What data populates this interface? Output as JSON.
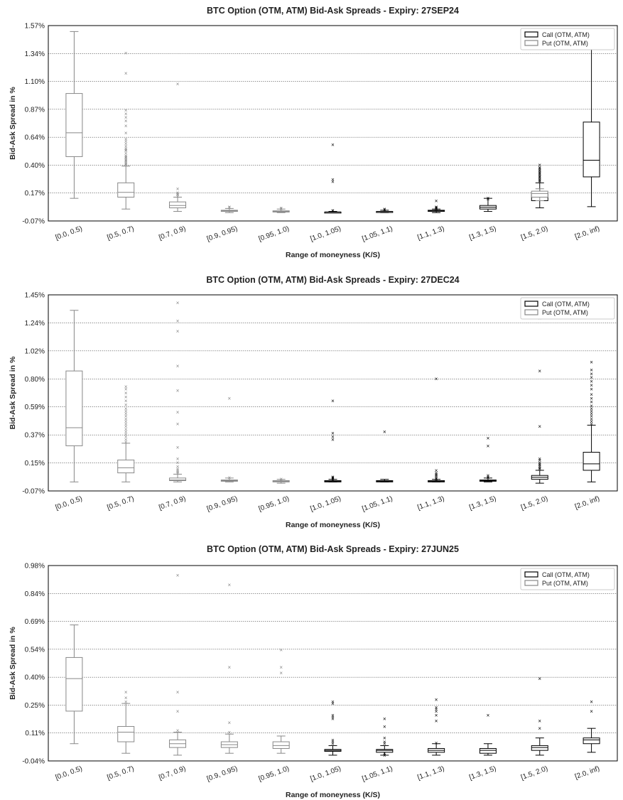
{
  "chart_data": [
    {
      "type": "box",
      "title": "BTC Option (OTM, ATM) Bid-Ask Spreads - Expiry: 27SEP24",
      "xlabel": "Range of moneyness (K/S)",
      "ylabel": "Bid-Ask Spread in %",
      "ylim": [
        -0.07,
        1.57
      ],
      "yticks": [
        "-0.07%",
        "0.17%",
        "0.40%",
        "0.64%",
        "0.87%",
        "1.10%",
        "1.34%",
        "1.57%"
      ],
      "grid": "horizontal-dotted",
      "legend_position": "top-right",
      "categories": [
        "[0.0, 0.5)",
        "[0.5, 0.7)",
        "[0.7, 0.9)",
        "[0.9, 0.95)",
        "[0.95, 1.0)",
        "[1.0, 1.05)",
        "[1.05, 1.1)",
        "[1.1, 1.3)",
        "[1.3, 1.5)",
        "[1.5, 2.0)",
        "[2.0, inf)"
      ],
      "series": [
        {
          "name": "Call (OTM, ATM)",
          "color": "#000000",
          "boxes": [
            null,
            null,
            null,
            null,
            null,
            {
              "whislo": 0.0,
              "q1": 0.0,
              "med": 0.005,
              "q3": 0.005,
              "whishi": 0.01,
              "outliers": [
                0.015,
                0.02,
                0.26,
                0.28,
                0.57
              ]
            },
            {
              "whislo": 0.0,
              "q1": 0.005,
              "med": 0.01,
              "q3": 0.01,
              "whishi": 0.02,
              "outliers": [
                0.025,
                0.03
              ]
            },
            {
              "whislo": 0.0,
              "q1": 0.01,
              "med": 0.015,
              "q3": 0.02,
              "whishi": 0.03,
              "outliers": [
                0.035,
                0.04,
                0.045,
                0.05,
                0.1
              ]
            },
            {
              "whislo": 0.01,
              "q1": 0.03,
              "med": 0.045,
              "q3": 0.06,
              "whishi": 0.12,
              "outliers": [
                0.115,
                0.125
              ]
            },
            {
              "whislo": 0.04,
              "q1": 0.1,
              "med": 0.14,
              "q3": 0.17,
              "whishi": 0.25,
              "outliers": [
                0.26,
                0.27,
                0.28,
                0.29,
                0.3,
                0.31,
                0.32,
                0.33,
                0.34,
                0.35,
                0.36,
                0.37,
                0.38,
                0.4
              ]
            },
            {
              "whislo": 0.05,
              "q1": 0.3,
              "med": 0.44,
              "q3": 0.76,
              "whishi": 1.52,
              "outliers": []
            }
          ]
        },
        {
          "name": "Put (OTM, ATM)",
          "color": "#888888",
          "boxes": [
            {
              "whislo": 0.12,
              "q1": 0.47,
              "med": 0.67,
              "q3": 1.0,
              "whishi": 1.52,
              "outliers": []
            },
            {
              "whislo": 0.03,
              "q1": 0.13,
              "med": 0.17,
              "q3": 0.25,
              "whishi": 0.39,
              "outliers": [
                0.4,
                0.41,
                0.42,
                0.43,
                0.44,
                0.45,
                0.46,
                0.47,
                0.48,
                0.5,
                0.52,
                0.53,
                0.54,
                0.56,
                0.58,
                0.6,
                0.62,
                0.67,
                0.73,
                0.77,
                0.8,
                0.83,
                0.86,
                1.17,
                1.34
              ]
            },
            {
              "whislo": 0.01,
              "q1": 0.04,
              "med": 0.06,
              "q3": 0.09,
              "whishi": 0.13,
              "outliers": [
                0.14,
                0.15,
                0.16,
                0.17,
                0.2,
                1.08
              ]
            },
            {
              "whislo": 0.0,
              "q1": 0.01,
              "med": 0.015,
              "q3": 0.02,
              "whishi": 0.035,
              "outliers": [
                0.045,
                0.05
              ]
            },
            {
              "whislo": 0.0,
              "q1": 0.005,
              "med": 0.01,
              "q3": 0.015,
              "whishi": 0.03,
              "outliers": [
                0.035,
                0.04
              ]
            },
            null,
            null,
            null,
            null,
            {
              "whislo": 0.1,
              "q1": 0.13,
              "med": 0.16,
              "q3": 0.18,
              "whishi": 0.2,
              "outliers": []
            },
            null
          ]
        }
      ]
    },
    {
      "type": "box",
      "title": "BTC Option (OTM, ATM) Bid-Ask Spreads - Expiry: 27DEC24",
      "xlabel": "Range of moneyness (K/S)",
      "ylabel": "Bid-Ask Spread in %",
      "ylim": [
        -0.07,
        1.45
      ],
      "yticks": [
        "-0.07%",
        "0.15%",
        "0.37%",
        "0.59%",
        "0.80%",
        "1.02%",
        "1.24%",
        "1.45%"
      ],
      "grid": "horizontal-dotted",
      "legend_position": "top-right",
      "categories": [
        "[0.0, 0.5)",
        "[0.5, 0.7)",
        "[0.7, 0.9)",
        "[0.9, 0.95)",
        "[0.95, 1.0)",
        "[1.0, 1.05)",
        "[1.05, 1.1)",
        "[1.1, 1.3)",
        "[1.3, 1.5)",
        "[1.5, 2.0)",
        "[2.0, inf)"
      ],
      "series": [
        {
          "name": "Call (OTM, ATM)",
          "color": "#000000",
          "boxes": [
            null,
            null,
            null,
            null,
            null,
            {
              "whislo": 0.0,
              "q1": 0.0,
              "med": 0.005,
              "q3": 0.01,
              "whishi": 0.02,
              "outliers": [
                0.025,
                0.03,
                0.035,
                0.04,
                0.33,
                0.35,
                0.38,
                0.63
              ]
            },
            {
              "whislo": 0.0,
              "q1": 0.0,
              "med": 0.005,
              "q3": 0.01,
              "whishi": 0.02,
              "outliers": [
                0.39
              ]
            },
            {
              "whislo": 0.0,
              "q1": 0.0,
              "med": 0.005,
              "q3": 0.01,
              "whishi": 0.02,
              "outliers": [
                0.025,
                0.03,
                0.04,
                0.05,
                0.06,
                0.07,
                0.09,
                0.8
              ]
            },
            {
              "whislo": 0.0,
              "q1": 0.005,
              "med": 0.01,
              "q3": 0.015,
              "whishi": 0.03,
              "outliers": [
                0.035,
                0.04,
                0.05,
                0.28,
                0.34
              ]
            },
            {
              "whislo": -0.01,
              "q1": 0.02,
              "med": 0.035,
              "q3": 0.05,
              "whishi": 0.09,
              "outliers": [
                0.1,
                0.11,
                0.12,
                0.13,
                0.14,
                0.15,
                0.17,
                0.18,
                0.43,
                0.86,
                1.27
              ]
            },
            {
              "whislo": 0.0,
              "q1": 0.09,
              "med": 0.14,
              "q3": 0.23,
              "whishi": 0.44,
              "outliers": [
                0.45,
                0.47,
                0.49,
                0.51,
                0.53,
                0.55,
                0.57,
                0.59,
                0.62,
                0.65,
                0.68,
                0.72,
                0.75,
                0.78,
                0.81,
                0.84,
                0.87,
                0.93
              ]
            }
          ]
        },
        {
          "name": "Put (OTM, ATM)",
          "color": "#888888",
          "boxes": [
            {
              "whislo": 0.0,
              "q1": 0.28,
              "med": 0.42,
              "q3": 0.86,
              "whishi": 1.33,
              "outliers": []
            },
            {
              "whislo": 0.0,
              "q1": 0.07,
              "med": 0.11,
              "q3": 0.17,
              "whishi": 0.3,
              "outliers": [
                0.31,
                0.33,
                0.35,
                0.37,
                0.39,
                0.41,
                0.43,
                0.45,
                0.47,
                0.49,
                0.51,
                0.53,
                0.55,
                0.57,
                0.6,
                0.63,
                0.66,
                0.69,
                0.72,
                0.74
              ]
            },
            {
              "whislo": 0.0,
              "q1": 0.01,
              "med": 0.015,
              "q3": 0.03,
              "whishi": 0.06,
              "outliers": [
                0.07,
                0.08,
                0.09,
                0.1,
                0.12,
                0.15,
                0.18,
                0.27,
                0.45,
                0.54,
                0.71,
                0.9,
                1.17,
                1.25,
                1.39
              ]
            },
            {
              "whislo": 0.0,
              "q1": 0.005,
              "med": 0.01,
              "q3": 0.015,
              "whishi": 0.03,
              "outliers": [
                0.035,
                0.65
              ]
            },
            {
              "whislo": -0.01,
              "q1": 0.0,
              "med": 0.005,
              "q3": 0.01,
              "whishi": 0.02,
              "outliers": [
                0.025
              ]
            },
            null,
            null,
            null,
            null,
            null,
            null
          ]
        }
      ]
    },
    {
      "type": "box",
      "title": "BTC Option (OTM, ATM) Bid-Ask Spreads - Expiry: 27JUN25",
      "xlabel": "Range of moneyness (K/S)",
      "ylabel": "Bid-Ask Spread in %",
      "ylim": [
        -0.04,
        0.98
      ],
      "yticks": [
        "-0.04%",
        "0.11%",
        "0.25%",
        "0.40%",
        "0.54%",
        "0.69%",
        "0.84%",
        "0.98%"
      ],
      "grid": "horizontal-dotted",
      "legend_position": "top-right",
      "categories": [
        "[0.0, 0.5)",
        "[0.5, 0.7)",
        "[0.7, 0.9)",
        "[0.9, 0.95)",
        "[0.95, 1.0)",
        "[1.0, 1.05)",
        "[1.05, 1.1)",
        "[1.1, 1.3)",
        "[1.3, 1.5)",
        "[1.5, 2.0)",
        "[2.0, inf)"
      ],
      "series": [
        {
          "name": "Call (OTM, ATM)",
          "color": "#000000",
          "boxes": [
            null,
            null,
            null,
            null,
            null,
            {
              "whislo": -0.01,
              "q1": 0.01,
              "med": 0.015,
              "q3": 0.02,
              "whishi": 0.04,
              "outliers": [
                0.05,
                0.06,
                0.07,
                0.18,
                0.19,
                0.2,
                0.26,
                0.27
              ]
            },
            {
              "whislo": -0.01,
              "q1": 0.005,
              "med": 0.015,
              "q3": 0.02,
              "whishi": 0.04,
              "outliers": [
                0.0,
                -0.01,
                0.05,
                0.06,
                0.08,
                0.14,
                0.18
              ]
            },
            {
              "whislo": -0.01,
              "q1": 0.005,
              "med": 0.015,
              "q3": 0.025,
              "whishi": 0.05,
              "outliers": [
                0.055,
                0.17,
                0.2,
                0.22,
                0.23,
                0.24,
                0.28
              ]
            },
            {
              "whislo": -0.01,
              "q1": 0.0,
              "med": 0.015,
              "q3": 0.025,
              "whishi": 0.05,
              "outliers": [
                0.2
              ]
            },
            {
              "whislo": -0.01,
              "q1": 0.015,
              "med": 0.03,
              "q3": 0.04,
              "whishi": 0.08,
              "outliers": [
                0.13,
                0.17,
                0.39
              ]
            },
            {
              "whislo": 0.005,
              "q1": 0.05,
              "med": 0.07,
              "q3": 0.08,
              "whishi": 0.13,
              "outliers": [
                0.22,
                0.27
              ]
            }
          ]
        },
        {
          "name": "Put (OTM, ATM)",
          "color": "#888888",
          "boxes": [
            {
              "whislo": 0.05,
              "q1": 0.22,
              "med": 0.39,
              "q3": 0.5,
              "whishi": 0.67,
              "outliers": []
            },
            {
              "whislo": 0.0,
              "q1": 0.06,
              "med": 0.11,
              "q3": 0.14,
              "whishi": 0.26,
              "outliers": [
                0.27,
                0.29,
                0.32
              ]
            },
            {
              "whislo": -0.01,
              "q1": 0.03,
              "med": 0.05,
              "q3": 0.07,
              "whishi": 0.11,
              "outliers": [
                0.12,
                0.22,
                0.32,
                0.93
              ]
            },
            {
              "whislo": 0.0,
              "q1": 0.03,
              "med": 0.045,
              "q3": 0.06,
              "whishi": 0.1,
              "outliers": [
                0.11,
                0.16,
                0.45,
                0.88
              ]
            },
            {
              "whislo": 0.0,
              "q1": 0.025,
              "med": 0.04,
              "q3": 0.06,
              "whishi": 0.09,
              "outliers": [
                0.42,
                0.45,
                0.54
              ]
            },
            null,
            null,
            null,
            null,
            null,
            null
          ]
        }
      ]
    }
  ]
}
